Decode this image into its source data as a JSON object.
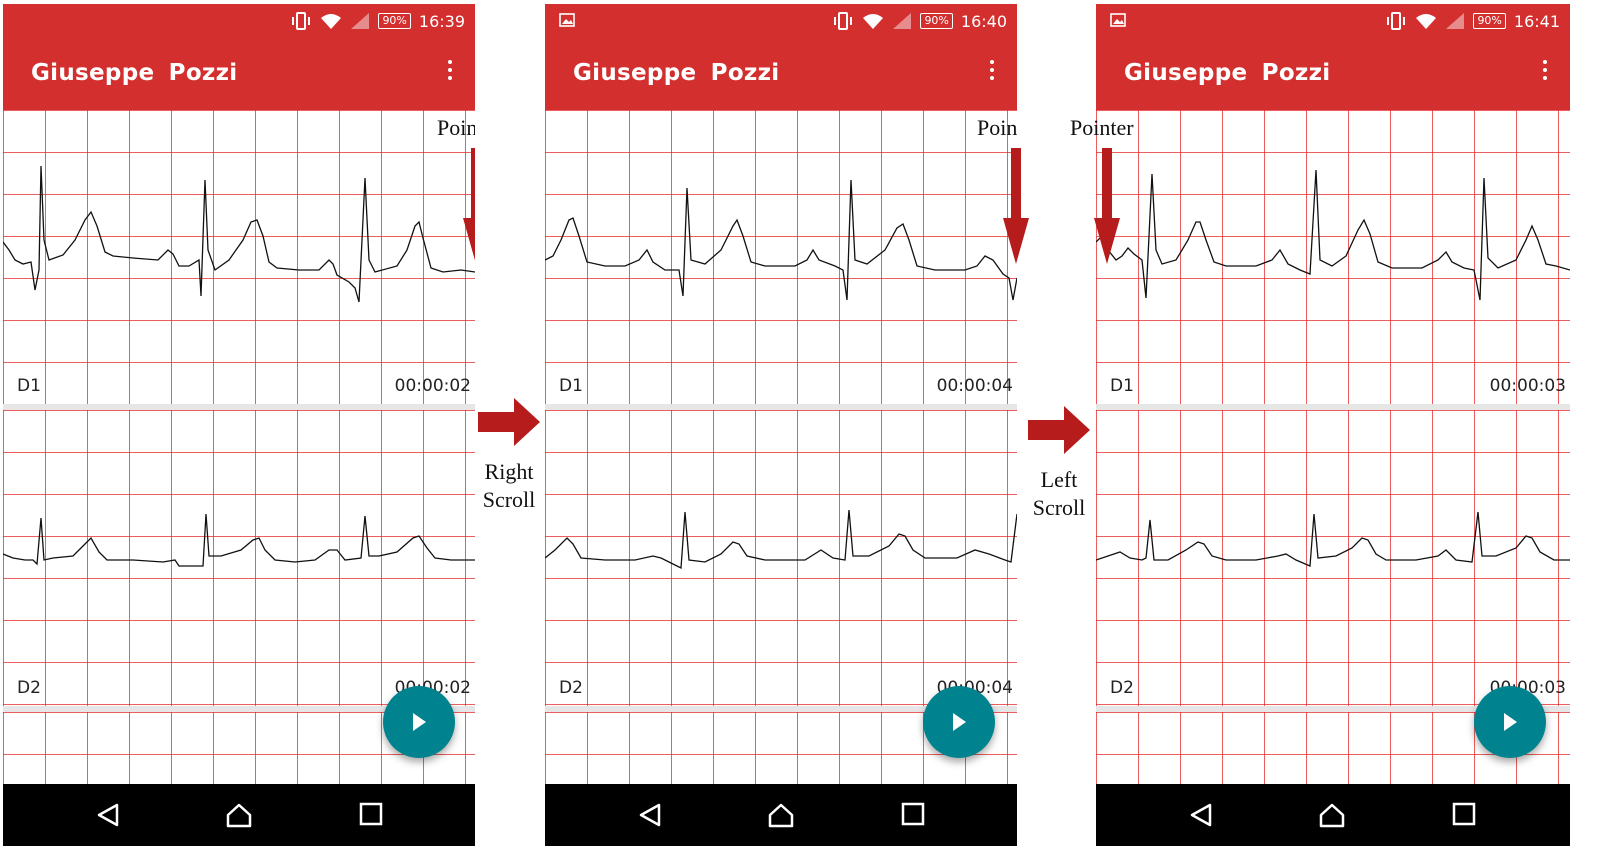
{
  "screens": [
    {
      "status_time": "16:39",
      "battery": "90%",
      "show_image_icon": false,
      "app_title": "Giuseppe  Pozzi",
      "leads": [
        {
          "name": "D1",
          "elapsed": "00:00:02"
        },
        {
          "name": "D2",
          "elapsed": "00:00:02"
        }
      ],
      "pointer_label": "Pointer"
    },
    {
      "status_time": "16:40",
      "battery": "90%",
      "show_image_icon": true,
      "app_title": "Giuseppe  Pozzi",
      "leads": [
        {
          "name": "D1",
          "elapsed": "00:00:04"
        },
        {
          "name": "D2",
          "elapsed": "00:00:04"
        }
      ],
      "pointer_label": "Pointer"
    },
    {
      "status_time": "16:41",
      "battery": "90%",
      "show_image_icon": true,
      "app_title": "Giuseppe  Pozzi",
      "leads": [
        {
          "name": "D1",
          "elapsed": "00:00:03"
        },
        {
          "name": "D2",
          "elapsed": "00:00:03"
        }
      ],
      "pointer_label": "Pointer"
    }
  ],
  "transitions": [
    {
      "line1": "Right",
      "line2": "Scroll"
    },
    {
      "line1": "Left",
      "line2": "Scroll"
    }
  ],
  "colors": {
    "app_bar": "#d32f2f",
    "grid": "#e62828",
    "fab": "#00838f",
    "arrow": "#b71c1c"
  },
  "icons": {
    "status": [
      "vibrate-icon",
      "wifi-icon",
      "signal-icon",
      "battery-icon"
    ],
    "nav": [
      "back-icon",
      "home-icon",
      "recents-icon"
    ],
    "fab": "play-icon",
    "menu": "overflow-menu-icon"
  }
}
